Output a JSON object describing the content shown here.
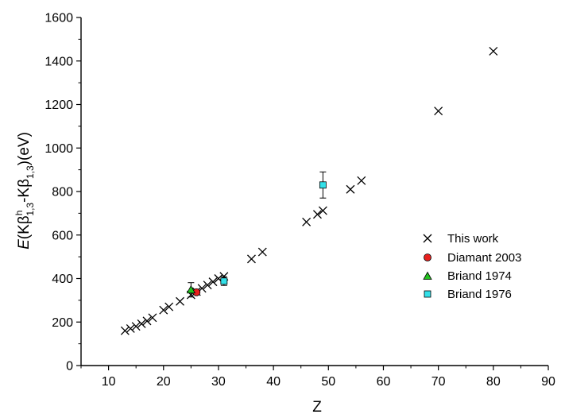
{
  "chart_data": {
    "type": "scatter",
    "xlabel": "Z",
    "ylabel": {
      "italic": "E",
      "open": "(Kβ",
      "sup": "h",
      "sub1": "1,3",
      "mid": "-Kβ",
      "sub2": "1,3",
      "close": ")(eV)"
    },
    "xlim": [
      5,
      90
    ],
    "ylim": [
      0,
      1600
    ],
    "x_ticks": [
      10,
      20,
      30,
      40,
      50,
      60,
      70,
      80,
      90
    ],
    "y_ticks": [
      0,
      200,
      400,
      600,
      800,
      1000,
      1200,
      1400,
      1600
    ],
    "grid": false,
    "legend_position": "right",
    "series": [
      {
        "name": "This work",
        "marker": "x",
        "color": "#000000",
        "x": [
          13,
          14,
          15,
          16,
          17,
          18,
          20,
          21,
          23,
          25,
          26,
          27,
          28,
          29,
          30,
          31,
          36,
          38,
          46,
          48,
          49,
          54,
          56,
          70,
          80
        ],
        "y": [
          160,
          170,
          180,
          192,
          205,
          220,
          255,
          270,
          295,
          325,
          340,
          355,
          370,
          385,
          400,
          410,
          490,
          522,
          660,
          695,
          712,
          810,
          850,
          1170,
          1445
        ]
      },
      {
        "name": "Diamant 2003",
        "marker": "circle",
        "color": "#e8201e",
        "x": [
          26
        ],
        "y": [
          337
        ]
      },
      {
        "name": "Briand 1974",
        "marker": "triangle",
        "color": "#22c21e",
        "x": [
          25
        ],
        "y": [
          348
        ],
        "err": [
          33
        ]
      },
      {
        "name": "Briand 1976",
        "marker": "square",
        "color": "#33e0e8",
        "x": [
          31,
          49
        ],
        "y": [
          388,
          830
        ],
        "err": [
          20,
          60
        ]
      }
    ]
  }
}
